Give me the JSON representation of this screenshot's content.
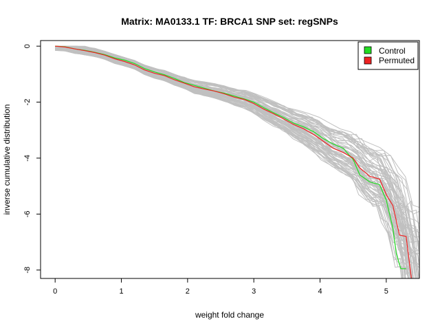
{
  "chart_data": {
    "type": "line",
    "title": "Matrix: MA0133.1 TF: BRCA1 SNP set: regSNPs",
    "xlabel": "weight fold change",
    "ylabel": "inverse cumulative distribution",
    "xlim": [
      -0.22,
      5.5
    ],
    "ylim": [
      -8.3,
      0.2
    ],
    "xticks": [
      0,
      1,
      2,
      3,
      4,
      5
    ],
    "yticks": [
      0,
      -2,
      -4,
      -6,
      -8
    ],
    "legend": {
      "position": "top-right"
    },
    "series": [
      {
        "name": "Control",
        "color": "#22dd22",
        "x": [
          0,
          0.15,
          0.3,
          0.45,
          0.6,
          0.75,
          0.9,
          1.05,
          1.2,
          1.35,
          1.5,
          1.65,
          1.8,
          1.95,
          2.1,
          2.25,
          2.4,
          2.55,
          2.7,
          2.85,
          3.0,
          3.15,
          3.3,
          3.45,
          3.6,
          3.75,
          3.9,
          4.05,
          4.2,
          4.35,
          4.5,
          4.6,
          4.75,
          4.9,
          5.0,
          5.1,
          5.15,
          5.22,
          5.3
        ],
        "y": [
          0,
          -0.02,
          -0.1,
          -0.15,
          -0.22,
          -0.3,
          -0.42,
          -0.5,
          -0.62,
          -0.8,
          -0.92,
          -1.02,
          -1.15,
          -1.3,
          -1.4,
          -1.5,
          -1.6,
          -1.68,
          -1.78,
          -1.88,
          -2.0,
          -2.2,
          -2.38,
          -2.55,
          -2.75,
          -2.88,
          -3.05,
          -3.3,
          -3.5,
          -3.65,
          -4.05,
          -4.6,
          -4.85,
          -4.95,
          -5.5,
          -6.5,
          -7.4,
          -7.95,
          -7.95
        ]
      },
      {
        "name": "Permuted",
        "color": "#ee2222",
        "x": [
          0,
          0.15,
          0.3,
          0.45,
          0.6,
          0.75,
          0.9,
          1.05,
          1.2,
          1.35,
          1.5,
          1.65,
          1.8,
          1.95,
          2.1,
          2.25,
          2.4,
          2.55,
          2.7,
          2.85,
          3.0,
          3.15,
          3.3,
          3.45,
          3.6,
          3.75,
          3.9,
          4.05,
          4.2,
          4.35,
          4.5,
          4.6,
          4.75,
          4.9,
          5.0,
          5.1,
          5.2,
          5.3,
          5.38
        ],
        "y": [
          0,
          -0.03,
          -0.1,
          -0.16,
          -0.23,
          -0.32,
          -0.45,
          -0.55,
          -0.67,
          -0.85,
          -0.97,
          -1.05,
          -1.2,
          -1.32,
          -1.45,
          -1.53,
          -1.6,
          -1.7,
          -1.82,
          -1.9,
          -2.05,
          -2.25,
          -2.42,
          -2.6,
          -2.8,
          -2.95,
          -3.15,
          -3.4,
          -3.65,
          -3.8,
          -4.0,
          -4.35,
          -4.65,
          -4.75,
          -5.3,
          -5.7,
          -6.75,
          -6.8,
          -8.3
        ]
      }
    ],
    "background_series": {
      "name": "",
      "color": "#c0c0c0",
      "count": 70
    }
  }
}
